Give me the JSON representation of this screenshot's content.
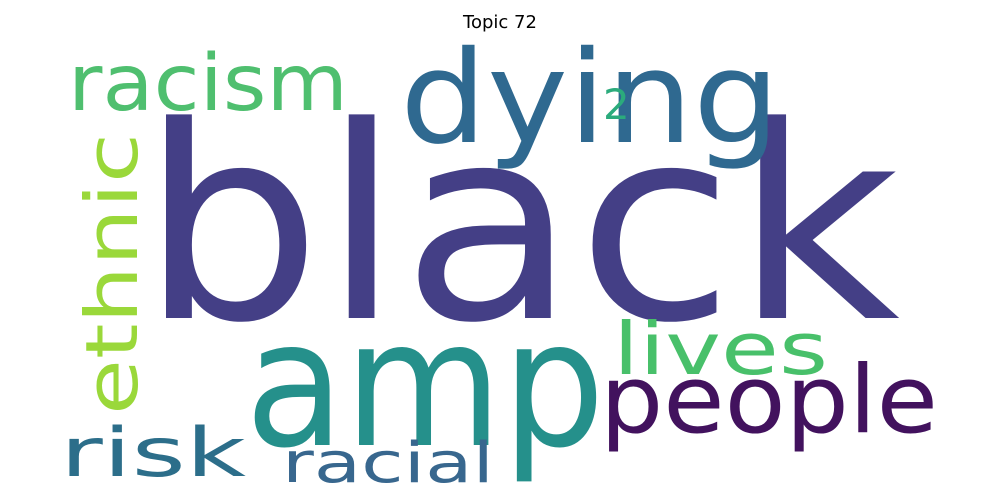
{
  "title": "Topic 72",
  "words": [
    {
      "text": "black",
      "color": "#443f86"
    },
    {
      "text": "amp",
      "color": "#25908b"
    },
    {
      "text": "dying",
      "color": "#2f6990"
    },
    {
      "text": "people",
      "color": "#42125e"
    },
    {
      "text": "racism",
      "color": "#4fbf6f"
    },
    {
      "text": "ethnic",
      "color": "#9ad83a"
    },
    {
      "text": "lives",
      "color": "#48c06a"
    },
    {
      "text": "risk",
      "color": "#2c6e8a"
    },
    {
      "text": "racial",
      "color": "#38678e"
    },
    {
      "text": "2",
      "color": "#2bab7c"
    }
  ]
}
